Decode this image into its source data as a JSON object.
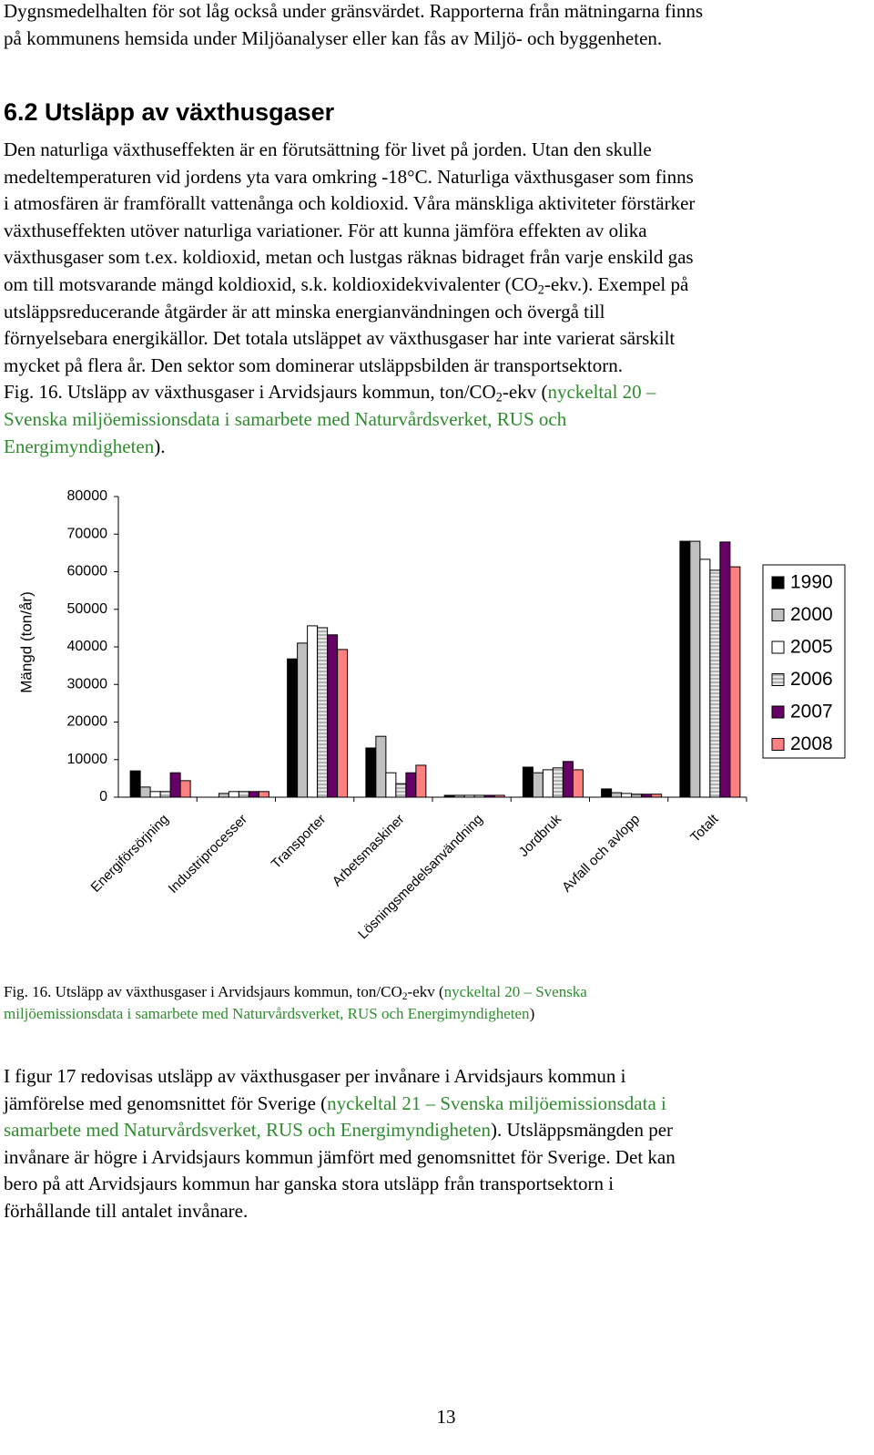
{
  "paragraphs": [
    [
      [
        {
          "text": "Dygnsmedelhalten för sot låg också under gränsvärdet. Rapporterna från mätningarna finns"
        }
      ],
      [
        {
          "text": "på kommunens hemsida under Miljöanalyser eller kan fås av Miljö- och byggenheten."
        }
      ]
    ],
    [
      [
        {
          "text": "Den naturliga växthuseffekten är en förutsättning för livet på jorden. Utan den skulle"
        }
      ],
      [
        {
          "text": "medeltemperaturen vid jordens yta vara omkring -18°C. Naturliga växthusgaser som finns"
        }
      ],
      [
        {
          "text": "i atmosfären är framförallt vattenånga och koldioxid. Våra mänskliga aktiviteter förstärker"
        }
      ],
      [
        {
          "text": "växthuseffekten utöver naturliga variationer. För att kunna jämföra effekten av olika"
        }
      ],
      [
        {
          "text": "växthusgaser som t.ex. koldioxid, metan och lustgas räknas bidraget från varje enskild gas"
        }
      ],
      [
        {
          "text": "om till motsvarande mängd koldioxid, s.k. koldioxidekvivalenter (CO"
        },
        {
          "text": "2",
          "sub": true
        },
        {
          "text": "-ekv.). Exempel på"
        }
      ],
      [
        {
          "text": "utsläppsreducerande åtgärder är att minska energianvändningen och övergå till"
        }
      ],
      [
        {
          "text": "förnyelsebara energikällor. Det totala utsläppet av växthusgaser har inte varierat särskilt"
        }
      ],
      [
        {
          "text": "mycket på flera år. Den sektor som dominerar utsläppsbilden är transportsektorn."
        }
      ],
      [
        {
          "text": "Fig. 16. Utsläpp av växthusgaser i Arvidsjaurs kommun, ton/CO"
        },
        {
          "text": "2",
          "sub": true
        },
        {
          "text": "-ekv ("
        },
        {
          "text": "nyckeltal 20 –",
          "color": "#2e8b2e"
        }
      ],
      [
        {
          "text": "Svenska miljöemissionsdata i samarbete med Naturvårdsverket, RUS och",
          "color": "#2e8b2e"
        }
      ],
      [
        {
          "text": "Energimyndigheten",
          "color": "#2e8b2e"
        },
        {
          "text": ")."
        }
      ]
    ],
    [
      [
        {
          "text": "Fig. 16. Utsläpp av växthusgaser i Arvidsjaurs kommun, ton/CO"
        },
        {
          "text": "2",
          "sub": true
        },
        {
          "text": "-ekv ("
        },
        {
          "text": "nyckeltal 20 – Svenska",
          "color": "#2e8b2e"
        }
      ],
      [
        {
          "text": "miljöemissionsdata i samarbete med Naturvårdsverket, RUS och Energimyndigheten",
          "color": "#2e8b2e"
        },
        {
          "text": ")"
        }
      ]
    ],
    [
      [
        {
          "text": "I figur 17 redovisas utsläpp av växthusgaser per invånare i Arvidsjaurs kommun i"
        }
      ],
      [
        {
          "text": "jämförelse med genomsnittet för Sverige ("
        },
        {
          "text": "nyckeltal 21 – Svenska miljöemissionsdata i",
          "color": "#2e8b2e"
        }
      ],
      [
        {
          "text": "samarbete med Naturvårdsverket, RUS och Energimyndigheten",
          "color": "#2e8b2e"
        },
        {
          "text": "). Utsläppsmängden per"
        }
      ],
      [
        {
          "text": "invånare är högre i Arvidsjaurs kommun jämfört med genomsnittet för Sverige. Det kan"
        }
      ],
      [
        {
          "text": "bero på att Arvidsjaurs kommun har ganska stora utsläpp från transportsektorn i"
        }
      ],
      [
        {
          "text": "förhållande till antalet invånare."
        }
      ]
    ]
  ],
  "heading": "6.2 Utsläpp av växthusgaser",
  "page_number": "13",
  "chart_data": {
    "type": "bar",
    "y_label": "Mängd (ton/år)",
    "categories": [
      "Energiförsörjning",
      "Industriprocesser",
      "Transporter",
      "Arbetsmaskiner",
      "Lösningsmedelsanvändning",
      "Jordbruk",
      "Avfall och avlopp",
      "Totalt"
    ],
    "series": [
      {
        "name": "1990",
        "color": "#000000",
        "values": [
          7000,
          0,
          36800,
          13100,
          500,
          8000,
          2200,
          68100
        ]
      },
      {
        "name": "2000",
        "color": "#c0c0c0",
        "values": [
          2700,
          1000,
          41000,
          16200,
          500,
          6500,
          1200,
          68100
        ]
      },
      {
        "name": "2005",
        "color": "#ffffff",
        "values": [
          1500,
          1500,
          45600,
          6500,
          500,
          7300,
          1000,
          63300
        ]
      },
      {
        "name": "2006",
        "color": "#e8e8e8",
        "hatch": true,
        "values": [
          1500,
          1500,
          45100,
          3600,
          500,
          7800,
          800,
          60400
        ]
      },
      {
        "name": "2007",
        "color": "#660066",
        "values": [
          6500,
          1500,
          43200,
          6500,
          500,
          9500,
          800,
          67900
        ]
      },
      {
        "name": "2008",
        "color": "#ff8080",
        "values": [
          4400,
          1500,
          39300,
          8500,
          500,
          7300,
          800,
          61300
        ]
      }
    ],
    "ylim": [
      0,
      80000
    ],
    "yticks": [
      0,
      10000,
      20000,
      30000,
      40000,
      50000,
      60000,
      70000,
      80000
    ],
    "grid": false,
    "legend": "right"
  }
}
